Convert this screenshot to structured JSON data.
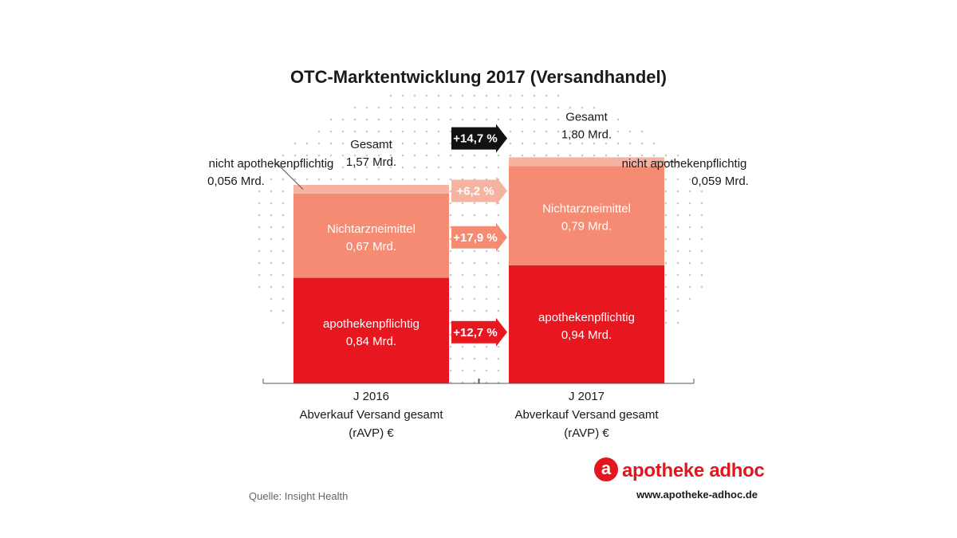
{
  "title": "OTC-Marktentwicklung 2017 (Versandhandel)",
  "chart_data": {
    "type": "bar",
    "stacked": true,
    "categories": [
      "J 2016",
      "J 2017"
    ],
    "category_sublabels": [
      "Abverkauf Versand gesamt",
      "(rAVP) €"
    ],
    "series": [
      {
        "name": "apothekenpflichtig",
        "values": [
          0.84,
          0.94
        ],
        "value_labels": [
          "0,84 Mrd.",
          "0,94 Mrd."
        ],
        "color": "#e8161f",
        "change": "+12,7 %",
        "arrow_color": "#e8161f"
      },
      {
        "name": "Nichtarzneimittel",
        "values": [
          0.67,
          0.79
        ],
        "value_labels": [
          "0,67 Mrd.",
          "0,79 Mrd."
        ],
        "color": "#f58b73",
        "change": "+17,9 %",
        "arrow_color": "#f58b73"
      },
      {
        "name": "nicht apothekenpflichtig",
        "values": [
          0.056,
          0.059
        ],
        "value_labels": [
          "0,056 Mrd.",
          "0,059 Mrd."
        ],
        "color": "#f7b3a1",
        "change": "+6,2 %",
        "arrow_color": "#f7b3a1"
      }
    ],
    "total": {
      "name": "Gesamt",
      "values": [
        1.57,
        1.8
      ],
      "value_labels": [
        "1,57 Mrd.",
        "1,80 Mrd."
      ],
      "change": "+14,7 %",
      "arrow_color": "#111111"
    }
  },
  "footer": {
    "source": "Quelle: Insight Health",
    "logo_letter": "a",
    "brand": "apotheke adhoc",
    "url": "www.apotheke-adhoc.de"
  }
}
